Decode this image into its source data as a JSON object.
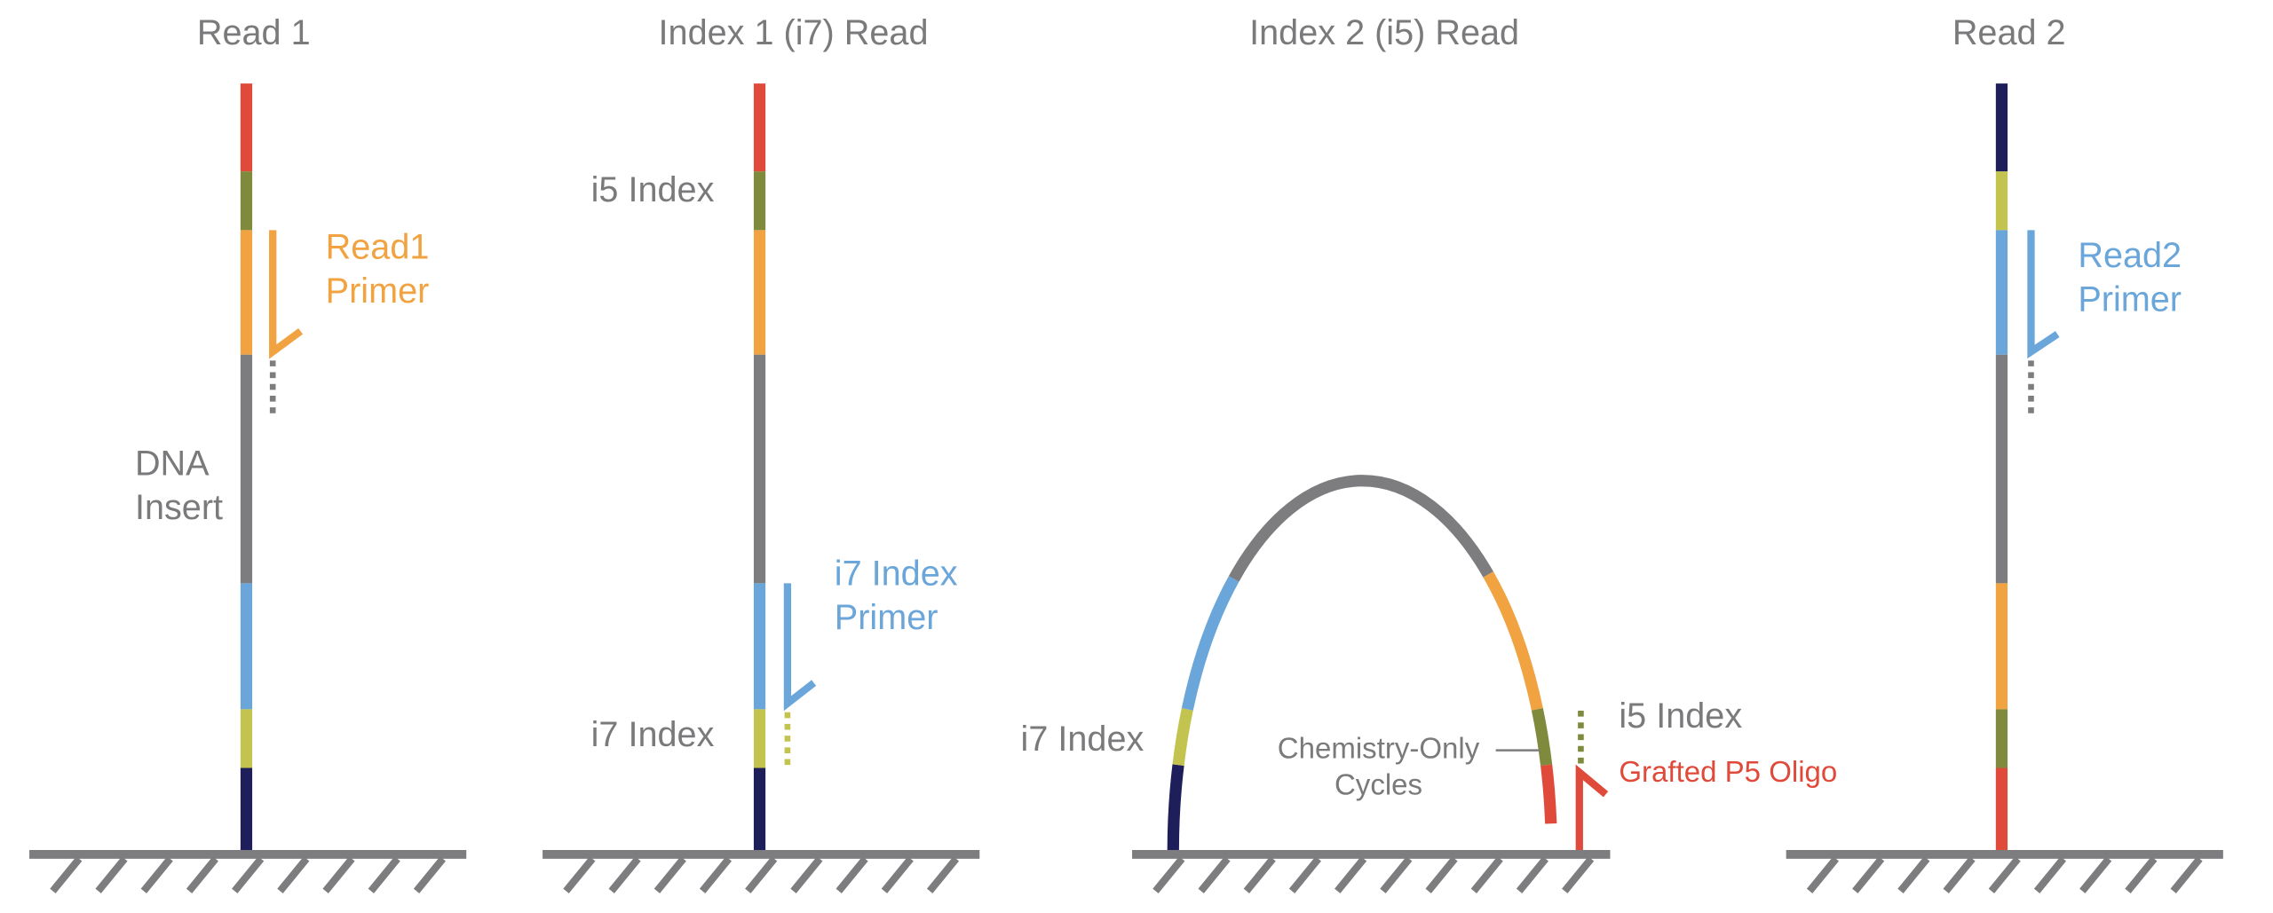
{
  "panels": [
    {
      "title": "Read 1",
      "labels": [
        "Read1",
        "Primer",
        "DNA",
        "Insert"
      ]
    },
    {
      "title": "Index 1 (i7) Read",
      "labels": [
        "i5 Index",
        "i7 Index",
        "Primer",
        "i7 Index"
      ]
    },
    {
      "title": "Index 2 (i5) Read",
      "labels": [
        "i7 Index",
        "Chemistry-Only",
        "Cycles",
        "i5 Index",
        "Grafted P5 Oligo"
      ]
    },
    {
      "title": "Read 2",
      "labels": [
        "Read2",
        "Primer"
      ]
    }
  ]
}
